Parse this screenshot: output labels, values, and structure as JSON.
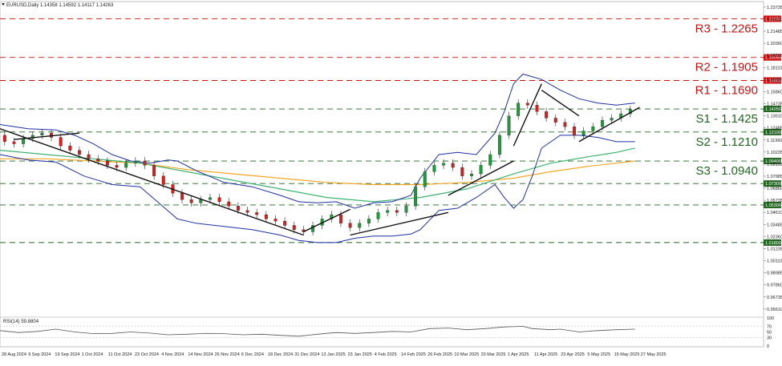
{
  "chart_data": {
    "type": "candlestick",
    "symbol_header": "EURUSD,Daily  1.14358 1.14592 1.14117 1.14263",
    "rsi_header": "RSI(14) 59.8804",
    "y_ticks": [
      "1.23735",
      "1.22610",
      "1.21485",
      "1.20360",
      "1.19235",
      "1.18110",
      "1.16985",
      "1.15860",
      "1.14735",
      "1.13610",
      "1.12485",
      "1.11360",
      "1.10235",
      "1.09110",
      "1.07985",
      "1.06860",
      "1.05735",
      "1.04610",
      "1.03485",
      "1.02360",
      "1.01235",
      "1.00110",
      "0.98985",
      "0.97860",
      "0.96735",
      "0.95610"
    ],
    "y_range": [
      0.9515,
      1.2425
    ],
    "rsi_ticks": [
      "100",
      "70",
      "50",
      "30",
      "0"
    ],
    "rsi_range": [
      0,
      100
    ],
    "x_ticks": [
      "28 Aug 2024",
      "9 Sep 2024",
      "19 Sep 2024",
      "1 Oct 2024",
      "11 Oct 2024",
      "23 Oct 2024",
      "4 Nov 2024",
      "14 Nov 2024",
      "26 Nov 2024",
      "6 Dec 2024",
      "18 Dec 2024",
      "31 Dec 2024",
      "13 Jan 2025",
      "23 Jan 2025",
      "4 Feb 2025",
      "14 Feb 2025",
      "26 Feb 2025",
      "10 Mar 2025",
      "20 Mar 2025",
      "1 Apr 2025",
      "11 Apr 2025",
      "23 Apr 2025",
      "5 May 2025",
      "15 May 2025",
      "27 May 2025"
    ],
    "levels": [
      {
        "label": "R3 - 1.2265",
        "tag": "1.22650",
        "value": 1.2265,
        "color": "#cc1111"
      },
      {
        "label": "R2 - 1.1905",
        "tag": "1.19050",
        "value": 1.1905,
        "color": "#cc1111"
      },
      {
        "label": "R1 - 1.1690",
        "tag": "1.16900",
        "value": 1.169,
        "color": "#cc1111"
      },
      {
        "label": "S1 - 1.1425",
        "tag": "1.14250",
        "value": 1.1425,
        "color": "#226622"
      },
      {
        "label": "S2 - 1.1210",
        "tag": "1.12100",
        "value": 1.121,
        "color": "#226622"
      },
      {
        "label": "S3 - 1.0940",
        "tag": "1.09400",
        "value": 1.094,
        "color": "#226622"
      },
      {
        "label": "",
        "tag": "1.07300",
        "value": 1.073,
        "color": "#226622"
      },
      {
        "label": "",
        "tag": "1.05300",
        "value": 1.053,
        "color": "#226622"
      },
      {
        "label": "",
        "tag": "1.01800",
        "value": 1.018,
        "color": "#226622"
      }
    ],
    "price_path": [
      [
        0,
        1.118
      ],
      [
        2,
        1.112
      ],
      [
        4,
        1.11
      ],
      [
        6,
        1.115
      ],
      [
        8,
        1.118
      ],
      [
        10,
        1.12
      ],
      [
        12,
        1.116
      ],
      [
        14,
        1.108
      ],
      [
        16,
        1.104
      ],
      [
        18,
        1.1
      ],
      [
        20,
        1.096
      ],
      [
        22,
        1.094
      ],
      [
        24,
        1.09
      ],
      [
        26,
        1.088
      ],
      [
        28,
        1.092
      ],
      [
        30,
        1.094
      ],
      [
        32,
        1.09
      ],
      [
        34,
        1.08
      ],
      [
        36,
        1.072
      ],
      [
        38,
        1.064
      ],
      [
        40,
        1.058
      ],
      [
        42,
        1.055
      ],
      [
        44,
        1.058
      ],
      [
        46,
        1.06
      ],
      [
        48,
        1.056
      ],
      [
        50,
        1.052
      ],
      [
        52,
        1.048
      ],
      [
        54,
        1.046
      ],
      [
        56,
        1.044
      ],
      [
        58,
        1.04
      ],
      [
        60,
        1.038
      ],
      [
        62,
        1.034
      ],
      [
        64,
        1.03
      ],
      [
        66,
        1.028
      ],
      [
        68,
        1.034
      ],
      [
        70,
        1.04
      ],
      [
        72,
        1.044
      ],
      [
        74,
        1.036
      ],
      [
        76,
        1.032
      ],
      [
        78,
        1.036
      ],
      [
        80,
        1.04
      ],
      [
        82,
        1.046
      ],
      [
        84,
        1.048
      ],
      [
        86,
        1.046
      ],
      [
        88,
        1.052
      ],
      [
        90,
        1.07
      ],
      [
        92,
        1.084
      ],
      [
        94,
        1.09
      ],
      [
        96,
        1.092
      ],
      [
        98,
        1.088
      ],
      [
        100,
        1.08
      ],
      [
        102,
        1.082
      ],
      [
        104,
        1.09
      ],
      [
        106,
        1.1
      ],
      [
        108,
        1.118
      ],
      [
        110,
        1.136
      ],
      [
        112,
        1.148
      ],
      [
        114,
        1.146
      ],
      [
        116,
        1.14
      ],
      [
        118,
        1.134
      ],
      [
        120,
        1.13
      ],
      [
        122,
        1.126
      ],
      [
        124,
        1.118
      ],
      [
        126,
        1.122
      ],
      [
        128,
        1.126
      ],
      [
        130,
        1.132
      ],
      [
        132,
        1.134
      ],
      [
        134,
        1.138
      ],
      [
        136,
        1.142
      ]
    ],
    "bb_upper": [
      [
        0,
        1.128
      ],
      [
        6,
        1.124
      ],
      [
        12,
        1.123
      ],
      [
        16,
        1.118
      ],
      [
        20,
        1.11
      ],
      [
        24,
        1.1
      ],
      [
        28,
        1.094
      ],
      [
        32,
        1.092
      ],
      [
        36,
        1.095
      ],
      [
        38,
        1.094
      ],
      [
        42,
        1.085
      ],
      [
        48,
        1.074
      ],
      [
        54,
        1.07
      ],
      [
        60,
        1.062
      ],
      [
        64,
        1.056
      ],
      [
        68,
        1.055
      ],
      [
        72,
        1.056
      ],
      [
        76,
        1.05
      ],
      [
        80,
        1.055
      ],
      [
        84,
        1.056
      ],
      [
        88,
        1.062
      ],
      [
        90,
        1.078
      ],
      [
        94,
        1.1
      ],
      [
        98,
        1.102
      ],
      [
        102,
        1.1
      ],
      [
        106,
        1.12
      ],
      [
        108,
        1.14
      ],
      [
        110,
        1.166
      ],
      [
        112,
        1.175
      ],
      [
        116,
        1.17
      ],
      [
        120,
        1.16
      ],
      [
        124,
        1.152
      ],
      [
        128,
        1.148
      ],
      [
        132,
        1.146
      ],
      [
        136,
        1.148
      ]
    ],
    "bb_lower": [
      [
        0,
        1.1
      ],
      [
        6,
        1.095
      ],
      [
        12,
        1.093
      ],
      [
        18,
        1.08
      ],
      [
        24,
        1.072
      ],
      [
        30,
        1.07
      ],
      [
        34,
        1.055
      ],
      [
        38,
        1.04
      ],
      [
        42,
        1.036
      ],
      [
        48,
        1.033
      ],
      [
        54,
        1.03
      ],
      [
        60,
        1.025
      ],
      [
        64,
        1.02
      ],
      [
        68,
        1.018
      ],
      [
        72,
        1.018
      ],
      [
        76,
        1.022
      ],
      [
        80,
        1.024
      ],
      [
        84,
        1.024
      ],
      [
        88,
        1.026
      ],
      [
        90,
        1.03
      ],
      [
        94,
        1.048
      ],
      [
        98,
        1.05
      ],
      [
        102,
        1.06
      ],
      [
        106,
        1.072
      ],
      [
        108,
        1.06
      ],
      [
        110,
        1.05
      ],
      [
        112,
        1.058
      ],
      [
        114,
        1.08
      ],
      [
        116,
        1.106
      ],
      [
        120,
        1.118
      ],
      [
        124,
        1.118
      ],
      [
        128,
        1.116
      ],
      [
        132,
        1.112
      ],
      [
        136,
        1.112
      ]
    ],
    "ma_100": [
      [
        0,
        1.104
      ],
      [
        10,
        1.1
      ],
      [
        20,
        1.096
      ],
      [
        30,
        1.092
      ],
      [
        40,
        1.084
      ],
      [
        50,
        1.076
      ],
      [
        60,
        1.068
      ],
      [
        70,
        1.06
      ],
      [
        80,
        1.056
      ],
      [
        90,
        1.06
      ],
      [
        100,
        1.068
      ],
      [
        110,
        1.082
      ],
      [
        118,
        1.092
      ],
      [
        126,
        1.098
      ],
      [
        132,
        1.102
      ],
      [
        136,
        1.106
      ]
    ],
    "ma_200": [
      [
        0,
        1.096
      ],
      [
        10,
        1.096
      ],
      [
        20,
        1.094
      ],
      [
        30,
        1.092
      ],
      [
        40,
        1.086
      ],
      [
        50,
        1.082
      ],
      [
        60,
        1.078
      ],
      [
        70,
        1.074
      ],
      [
        80,
        1.072
      ],
      [
        90,
        1.072
      ],
      [
        100,
        1.074
      ],
      [
        110,
        1.078
      ],
      [
        118,
        1.084
      ],
      [
        126,
        1.089
      ],
      [
        132,
        1.092
      ],
      [
        136,
        1.094
      ]
    ],
    "trendlines": [
      [
        [
          0,
          1.124
        ],
        [
          65,
          1.025
        ]
      ],
      [
        [
          3,
          1.114
        ],
        [
          17,
          1.12
        ]
      ],
      [
        [
          65,
          1.028
        ],
        [
          75,
          1.049
        ]
      ],
      [
        [
          75,
          1.025
        ],
        [
          96,
          1.046
        ]
      ],
      [
        [
          96,
          1.062
        ],
        [
          110,
          1.094
        ]
      ],
      [
        [
          110,
          1.108
        ],
        [
          116,
          1.166
        ]
      ],
      [
        [
          116,
          1.16
        ],
        [
          124,
          1.136
        ]
      ],
      [
        [
          124,
          1.112
        ],
        [
          137,
          1.144
        ]
      ]
    ],
    "rsi_path": [
      [
        0,
        55
      ],
      [
        4,
        48
      ],
      [
        8,
        52
      ],
      [
        12,
        60
      ],
      [
        16,
        50
      ],
      [
        20,
        44
      ],
      [
        24,
        45
      ],
      [
        28,
        50
      ],
      [
        32,
        46
      ],
      [
        36,
        40
      ],
      [
        40,
        42
      ],
      [
        44,
        45
      ],
      [
        48,
        44
      ],
      [
        52,
        40
      ],
      [
        56,
        42
      ],
      [
        60,
        38
      ],
      [
        64,
        35
      ],
      [
        68,
        42
      ],
      [
        72,
        48
      ],
      [
        76,
        45
      ],
      [
        80,
        48
      ],
      [
        84,
        52
      ],
      [
        88,
        50
      ],
      [
        92,
        62
      ],
      [
        96,
        64
      ],
      [
        100,
        58
      ],
      [
        104,
        62
      ],
      [
        108,
        68
      ],
      [
        112,
        70
      ],
      [
        114,
        62
      ],
      [
        118,
        58
      ],
      [
        120,
        60
      ],
      [
        124,
        50
      ],
      [
        128,
        55
      ],
      [
        132,
        58
      ],
      [
        136,
        60
      ]
    ]
  }
}
